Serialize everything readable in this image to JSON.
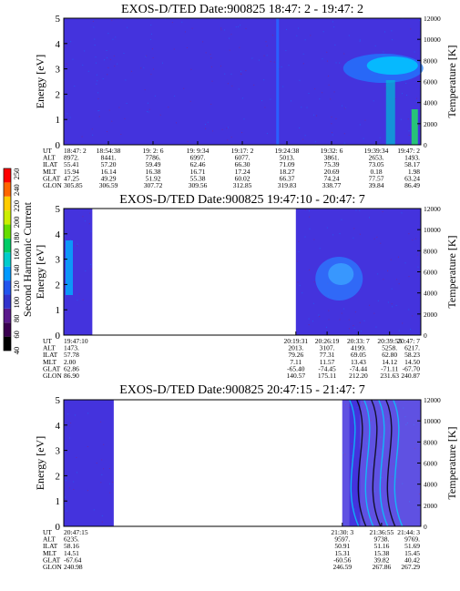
{
  "chart_data": [
    {
      "type": "heatmap",
      "title": "EXOS-D/TED   Date:900825  18:47: 2 - 19:47: 2",
      "ylabel": "Energy [eV]",
      "ylabel_right": "Temperature [K]",
      "ylim": [
        0,
        5
      ],
      "ylim_right": [
        0,
        12000
      ],
      "y_ticks": [
        "0",
        "1",
        "2",
        "3",
        "4",
        "5"
      ],
      "y_ticks_right": [
        "0",
        "2000",
        "4000",
        "6000",
        "8000",
        "10000",
        "12000"
      ],
      "row_labels": [
        "UT",
        "ALT",
        "ILAT",
        "MLT",
        "GLAT",
        "GLON"
      ],
      "columns": [
        {
          "values": [
            "18:47: 2",
            "8972.",
            "55.41",
            "15.94",
            "47.25",
            "305.85"
          ]
        },
        {
          "values": [
            "18:54:38",
            "8441.",
            "57.20",
            "16.14",
            "49.29",
            "306.59"
          ]
        },
        {
          "values": [
            "19: 2: 6",
            "7786.",
            "59.49",
            "16.38",
            "51.92",
            "307.72"
          ]
        },
        {
          "values": [
            "19: 9:34",
            "6997.",
            "62.46",
            "16.71",
            "55.38",
            "309.56"
          ]
        },
        {
          "values": [
            "19:17: 2",
            "6077.",
            "66.30",
            "17.24",
            "60.02",
            "312.85"
          ]
        },
        {
          "values": [
            "19:24:38",
            "5013.",
            "71.09",
            "18.27",
            "66.37",
            "319.83"
          ]
        },
        {
          "values": [
            "19:32: 6",
            "3861.",
            "75.39",
            "20.69",
            "74.24",
            "338.77"
          ]
        },
        {
          "values": [
            "19:39:34",
            "2653.",
            "73.05",
            "0.18",
            "77.57",
            "39.84"
          ]
        },
        {
          "values": [
            "19:47: 2",
            "1493.",
            "58.17",
            "1.98",
            "63.24",
            "86.49"
          ]
        }
      ],
      "data_spans": [
        [
          0,
          1
        ]
      ]
    },
    {
      "type": "heatmap",
      "title": "EXOS-D/TED   Date:900825  19:47:10 - 20:47: 7",
      "ylabel": "Energy [eV]",
      "ylabel_right": "Temperature [K]",
      "ylim": [
        0,
        5
      ],
      "ylim_right": [
        0,
        12000
      ],
      "y_ticks": [
        "0",
        "1",
        "2",
        "3",
        "4",
        "5"
      ],
      "y_ticks_right": [
        "0",
        "2000",
        "4000",
        "6000",
        "8000",
        "10000",
        "12000"
      ],
      "row_labels": [
        "UT",
        "ALT",
        "ILAT",
        "MLT",
        "GLAT",
        "GLON"
      ],
      "columns": [
        {
          "values": [
            "19:47:10",
            "1473.",
            "57.78",
            "2.00",
            "62.86",
            "86.90"
          ]
        },
        {
          "values": [
            "20:19:31",
            "2013.",
            "79.26",
            "7.11",
            "-65.40",
            "140.57"
          ]
        },
        {
          "values": [
            "20:26:19",
            "3107.",
            "77.31",
            "11.57",
            "-74.45",
            "175.11"
          ]
        },
        {
          "values": [
            "20:33: 7",
            "4199.",
            "69.05",
            "13.43",
            "-74.44",
            "212.20"
          ]
        },
        {
          "values": [
            "20:39:55",
            "5258.",
            "62.80",
            "14.12",
            "-71.11",
            "231.63"
          ]
        },
        {
          "values": [
            "20:47: 7",
            "6217.",
            "58.23",
            "14.50",
            "-67.70",
            "240.87"
          ]
        }
      ],
      "data_spans": [
        [
          0,
          0.08
        ],
        [
          0.65,
          1
        ]
      ]
    },
    {
      "type": "heatmap",
      "title": "EXOS-D/TED   Date:900825  20:47:15 - 21:47: 7",
      "ylabel": "Energy [eV]",
      "ylabel_right": "Temperature [K]",
      "ylim": [
        0,
        5
      ],
      "ylim_right": [
        0,
        12000
      ],
      "y_ticks": [
        "0",
        "1",
        "2",
        "3",
        "4",
        "5"
      ],
      "y_ticks_right": [
        "0",
        "2000",
        "4000",
        "6000",
        "8000",
        "10000",
        "12000"
      ],
      "row_labels": [
        "UT",
        "ALT",
        "ILAT",
        "MLT",
        "GLAT",
        "GLON"
      ],
      "columns": [
        {
          "values": [
            "20:47:15",
            "6235.",
            "58.16",
            "14.51",
            "-67.64",
            "240.98"
          ]
        },
        {
          "values": [
            "21:30: 3",
            "9597.",
            "50.91",
            "15.31",
            "-60.56",
            "246.59"
          ]
        },
        {
          "values": [
            "21:36:55",
            "9738.",
            "51.16",
            "15.38",
            "39.82",
            "267.86"
          ]
        },
        {
          "values": [
            "21:44: 3",
            "9769.",
            "51.69",
            "15.45",
            "40.42",
            "267.29"
          ]
        }
      ],
      "data_spans": [
        [
          0,
          0.14
        ],
        [
          0.78,
          1
        ]
      ]
    }
  ],
  "colorbar": {
    "label": "Second Harmonic Current",
    "ticks": [
      "40",
      "60",
      "80",
      "100",
      "120",
      "140",
      "160",
      "180",
      "200",
      "220",
      "240",
      "250"
    ],
    "colors": [
      "#000000",
      "#3a0050",
      "#5a1a8c",
      "#3333cc",
      "#2255ee",
      "#0099ff",
      "#00cccc",
      "#00cc66",
      "#66dd00",
      "#ccee00",
      "#ffcc00",
      "#ff6600",
      "#ff0000"
    ],
    "background": "#4433dd"
  }
}
